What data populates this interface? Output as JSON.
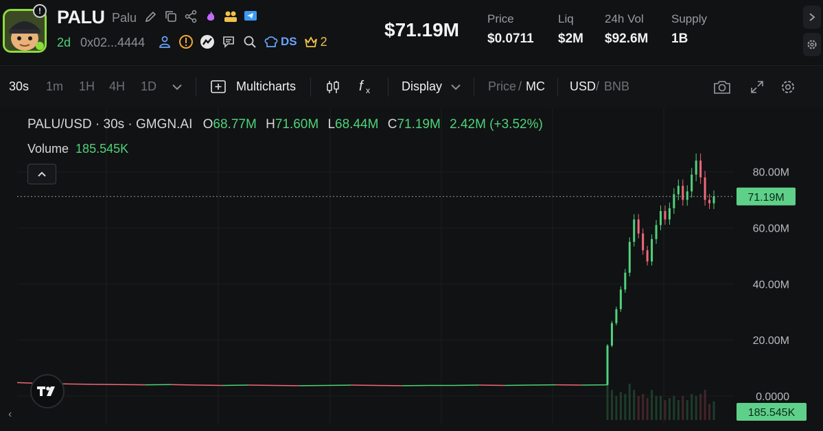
{
  "header": {
    "symbol": "PALU",
    "name": "Palu",
    "age": "2d",
    "address": "0x02...4444",
    "ds_label": "DS",
    "crown_count": "2",
    "market_cap": "$71.19M",
    "stats": [
      {
        "label": "Price",
        "value": "$0.0711"
      },
      {
        "label": "Liq",
        "value": "$2M"
      },
      {
        "label": "24h Vol",
        "value": "$92.6M"
      },
      {
        "label": "Supply",
        "value": "1B"
      }
    ]
  },
  "toolbar": {
    "intervals": [
      "30s",
      "1m",
      "1H",
      "4H",
      "1D"
    ],
    "active_interval": "30s",
    "multicharts_label": "Multicharts",
    "display_label": "Display",
    "price_label": "Price",
    "mc_label": "MC",
    "usd_label": "USD",
    "bnb_label": "BNB"
  },
  "legend": {
    "pair": "PALU/USD · 30s · GMGN.AI",
    "o_label": "O",
    "o_value": "68.77M",
    "h_label": "H",
    "h_value": "71.60M",
    "l_label": "L",
    "l_value": "68.44M",
    "c_label": "C",
    "c_value": "71.19M",
    "change": "2.42M (+3.52%)",
    "volume_label": "Volume",
    "volume_value": "185.545K"
  },
  "colors": {
    "up": "#4fd37a",
    "down": "#f0697a",
    "price_tag": "#5fd08a",
    "accent_blue": "#6aa5ff"
  },
  "chart_data": {
    "type": "candlestick",
    "y_unit": "market cap (USD)",
    "ylim": [
      0,
      88000000
    ],
    "y_ticks": [
      "80.00M",
      "60.00M",
      "40.00M",
      "20.00M",
      "0.0000"
    ],
    "current_price_label": "71.19M",
    "current_volume_label": "185.545K",
    "current_value": 71190000,
    "series": [
      {
        "name": "Market cap",
        "values": [
          4800000,
          4500000,
          4300000,
          4200000,
          4100000,
          4000000,
          4100000,
          3900000,
          3800000,
          3900000,
          3800000,
          3700000,
          3800000,
          3900000,
          3800000,
          3700000,
          3800000,
          3800000,
          3900000,
          3800000,
          3900000,
          4000000,
          3900000,
          4000000,
          18000000,
          26000000,
          31000000,
          38000000,
          44000000,
          55000000,
          63000000,
          58000000,
          52000000,
          48000000,
          56000000,
          61000000,
          66000000,
          63000000,
          67000000,
          72000000,
          75000000,
          70000000,
          73000000,
          79000000,
          84000000,
          78000000,
          70000000,
          68770000,
          71190000
        ]
      }
    ]
  }
}
